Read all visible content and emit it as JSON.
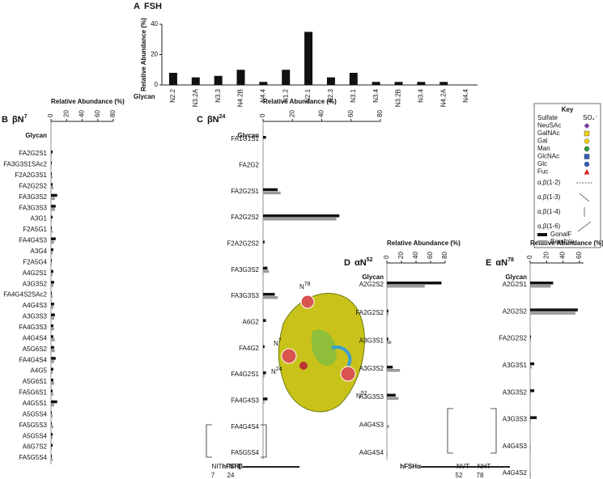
{
  "chart_data": [
    {
      "type": "bar",
      "letter": "A",
      "title": "FSH",
      "ylabel": "Relative Abundance (%)",
      "xlabel": "Glycan",
      "categories": [
        "N2.2",
        "N3.2A",
        "N3.3",
        "N4.2B",
        "N4.4",
        "N1.2",
        "N2.1",
        "N2.3",
        "N3.1",
        "N3.4",
        "N3.2B",
        "N3.4",
        "N4.2A",
        "N4.4"
      ],
      "values": [
        8,
        5,
        6,
        10,
        2,
        10,
        35,
        5,
        8,
        2,
        2,
        2,
        2,
        0
      ],
      "color": "#111111",
      "ylim": [
        0,
        40
      ],
      "yticks": [
        0,
        20,
        40
      ]
    },
    {
      "type": "hbar",
      "letter": "B",
      "title": "βN",
      "title_sup": "7",
      "xlabel": "Relative Abundance (%)",
      "ylabel": "Glycan",
      "categories": [
        "FA2G2S1",
        "FA3G3S1SAc2",
        "F2A2G3S1",
        "FA2G2S2",
        "FA3G3S2",
        "FA3G3S3",
        "A3G1",
        "F2A5G1",
        "FA4G4S3",
        "A3G4",
        "F2A5G4",
        "A4G2S1",
        "A3G3S2",
        "FA4G4S2SAc2",
        "A4G4S3",
        "A3G3S3",
        "FA4G3S3",
        "A4G4S4",
        "A5G6S2",
        "FA4G4S4",
        "A4G5",
        "A5G6S1",
        "FA5G6S1",
        "A4G5S1",
        "A5G5S4",
        "FA5G5S3",
        "A5G5S4",
        "A6G7S2",
        "FA5G5S4"
      ],
      "series": [
        {
          "name": "GonalF",
          "color": "#111111",
          "values": [
            2,
            1,
            1,
            2,
            8,
            6,
            2,
            1,
            6,
            3,
            1,
            3,
            4,
            1,
            4,
            5,
            3,
            3,
            4,
            6,
            3,
            3,
            2,
            8,
            1,
            1,
            2,
            2,
            1
          ]
        },
        {
          "name": "Bemfola",
          "color": "#999999",
          "values": [
            1,
            1,
            2,
            3,
            5,
            5,
            1,
            2,
            4,
            2,
            1,
            2,
            3,
            2,
            3,
            4,
            4,
            5,
            5,
            4,
            2,
            4,
            3,
            4,
            2,
            3,
            2,
            1,
            2
          ]
        }
      ],
      "xlim": [
        0,
        80
      ],
      "xticks": [
        0,
        20,
        40,
        60,
        80
      ]
    },
    {
      "type": "hbar",
      "letter": "C",
      "title": "βN",
      "title_sup": "24",
      "xlabel": "Relative Abundance (%)",
      "ylabel": "Glycan",
      "categories": [
        "FA1G1S1",
        "FA2G2",
        "FA2G2S1",
        "FA2G2S2",
        "F2A2G2S2",
        "FA3G3S2",
        "FA3G3S3",
        "A6G2",
        "FA4G2",
        "FA4G2S1",
        "FA4G4S3",
        "FA4G4S4",
        "FA5G5S4"
      ],
      "series": [
        {
          "name": "GonalF",
          "color": "#111111",
          "values": [
            2,
            0,
            10,
            52,
            1,
            3,
            8,
            2,
            1,
            2,
            3,
            0,
            0
          ]
        },
        {
          "name": "Bemfola",
          "color": "#999999",
          "values": [
            0,
            0,
            12,
            50,
            0,
            4,
            10,
            0,
            0,
            1,
            1,
            0,
            0
          ]
        }
      ],
      "xlim": [
        0,
        80
      ],
      "xticks": [
        0,
        20,
        40,
        60,
        80
      ]
    },
    {
      "type": "hbar",
      "letter": "D",
      "title": "αN",
      "title_sup": "52",
      "xlabel": "Relative Abundance (%)",
      "ylabel": "Glycan",
      "categories": [
        "A2G2S2",
        "FA2G2S2",
        "A3G3S1",
        "A3G3S2",
        "A3G3S3",
        "A4G4S3",
        "A4G4S4"
      ],
      "series": [
        {
          "name": "GonalF",
          "color": "#111111",
          "values": [
            75,
            2,
            2,
            8,
            12,
            0,
            0
          ]
        },
        {
          "name": "Bemfola",
          "color": "#999999",
          "values": [
            52,
            2,
            6,
            18,
            16,
            3,
            1
          ]
        }
      ],
      "xlim": [
        0,
        80
      ],
      "xticks": [
        0,
        20,
        40,
        60,
        80
      ]
    },
    {
      "type": "hbar",
      "letter": "E",
      "title": "αN",
      "title_sup": "78",
      "xlabel": "Relative Abundance (%)",
      "ylabel": "Glycan",
      "categories": [
        "A2G2S1",
        "A2G2S2",
        "FA2G2S2",
        "A3G3S1",
        "A3G3S2",
        "A3G3S3",
        "A4G4S3",
        "A4G4S2"
      ],
      "series": [
        {
          "name": "GonalF",
          "color": "#111111",
          "values": [
            28,
            58,
            1,
            5,
            5,
            8,
            0,
            0
          ]
        },
        {
          "name": "Bemfola",
          "color": "#999999",
          "values": [
            25,
            55,
            1,
            2,
            1,
            1,
            1,
            1
          ]
        }
      ],
      "xlim": [
        0,
        65
      ],
      "xticks": [
        0,
        20,
        40,
        60
      ]
    }
  ],
  "key": {
    "title": "Key",
    "items": [
      "Sulfate",
      "NeuSAc",
      "GalNAc",
      "Gal",
      "Man",
      "GlcNAc",
      "Glc",
      "Fuc",
      "α,β(1-2)",
      "α,β(1-3)",
      "α,β(1-4)",
      "α,β(1-6)"
    ],
    "sulfate_symbol": "SO₄⁻"
  },
  "beta": {
    "label": "hFSHβ",
    "sites": [
      "NIT",
      "NTT"
    ],
    "positions": [
      "7",
      "24"
    ]
  },
  "alpha": {
    "label": "hFSHα",
    "sites": [
      "NVT",
      "NHT"
    ],
    "positions": [
      "52",
      "78"
    ]
  },
  "protein_labels": [
    {
      "base": "N",
      "sup": "78"
    },
    {
      "base": "N",
      "sup": "7"
    },
    {
      "base": "N",
      "sup": "24"
    },
    {
      "base": "N",
      "sup": "52"
    }
  ]
}
